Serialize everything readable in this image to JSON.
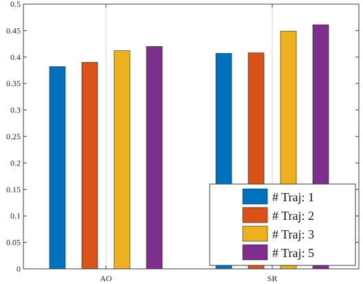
{
  "chart_data": {
    "type": "bar",
    "title": "",
    "xlabel": "",
    "ylabel": "",
    "categories": [
      "AO",
      "SR"
    ],
    "series": [
      {
        "name": "# Traj: 1",
        "color": "#0072BD",
        "values": [
          0.382,
          0.407
        ]
      },
      {
        "name": "# Traj: 2",
        "color": "#D95319",
        "values": [
          0.39,
          0.408
        ]
      },
      {
        "name": "# Traj: 3",
        "color": "#EDB120",
        "values": [
          0.412,
          0.449
        ]
      },
      {
        "name": "# Traj: 5",
        "color": "#7E2F8E",
        "values": [
          0.42,
          0.461
        ]
      }
    ],
    "ylim": [
      0,
      0.5
    ],
    "yticks": [
      "0",
      "0.05",
      "0.1",
      "0.15",
      "0.2",
      "0.25",
      "0.3",
      "0.35",
      "0.4",
      "0.45",
      "0.5"
    ],
    "grid": "x-gridlines-at-categories",
    "legend_position": "bottom-right"
  }
}
